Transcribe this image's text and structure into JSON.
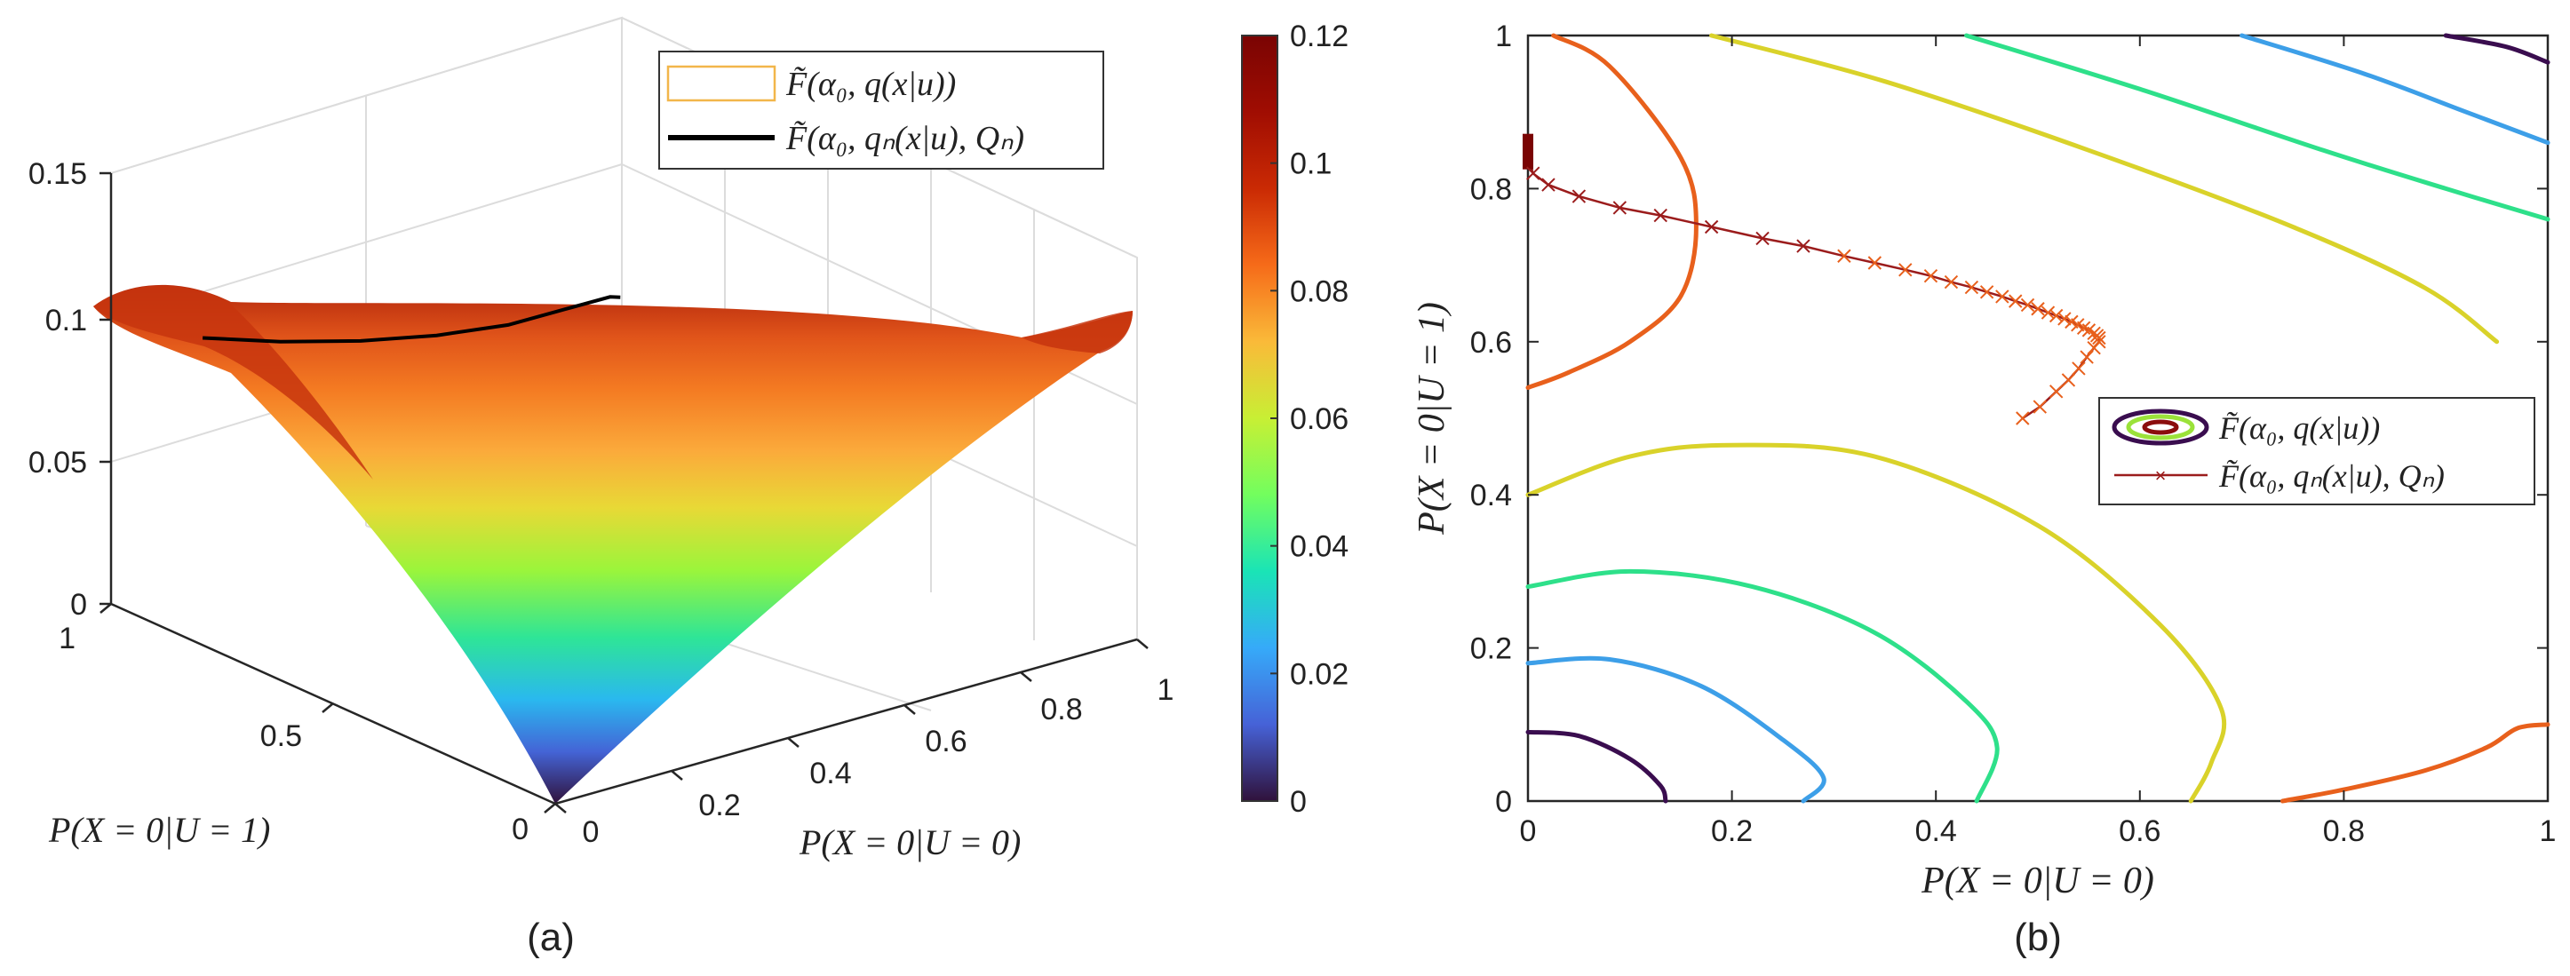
{
  "chart_data": [
    {
      "type": "surface3d",
      "panel_label": "(a)",
      "xlabel": "P(X = 0|U = 0)",
      "ylabel": "P(X = 0|U = 1)",
      "x_ticks": [
        "0",
        "0.2",
        "0.4",
        "0.6",
        "0.8",
        "1"
      ],
      "y_ticks": [
        "0",
        "0.5",
        "1"
      ],
      "z_ticks": [
        "0",
        "0.05",
        "0.1",
        "0.15"
      ],
      "xlim": [
        0,
        1
      ],
      "ylim": [
        0,
        1
      ],
      "zlim": [
        0,
        0.15
      ],
      "corner_values": {
        "x0_y0": 0.0,
        "x1_y0": 0.1,
        "x0_y1": 0.105,
        "x1_y1": 0.1
      },
      "trajectory": {
        "name": "F̃(α₀, qₙ(x|u), Qₙ)",
        "points": [
          [
            0.02,
            0.82,
            0.104
          ],
          [
            0.1,
            0.75,
            0.103
          ],
          [
            0.2,
            0.7,
            0.101
          ],
          [
            0.3,
            0.66,
            0.1
          ],
          [
            0.4,
            0.63,
            0.1
          ],
          [
            0.5,
            0.62,
            0.101
          ],
          [
            0.56,
            0.61,
            0.102
          ],
          [
            0.57,
            0.6,
            0.102
          ]
        ]
      },
      "legend": [
        {
          "label": "F̃(α₀, q(x|u))",
          "style": "surface-patch",
          "color": "#f2b64a"
        },
        {
          "label": "F̃(α₀, qₙ(x|u), Qₙ)",
          "style": "line",
          "color": "#000000"
        }
      ],
      "colorbar": {
        "min": 0,
        "max": 0.12,
        "ticks": [
          "0",
          "0.02",
          "0.04",
          "0.06",
          "0.08",
          "0.1",
          "0.12"
        ],
        "colormap": "turbo"
      }
    },
    {
      "type": "contour",
      "panel_label": "(b)",
      "xlabel": "P(X = 0|U = 0)",
      "ylabel": "P(X = 0|U = 1)",
      "x_ticks": [
        "0",
        "0.2",
        "0.4",
        "0.6",
        "0.8",
        "1"
      ],
      "y_ticks": [
        "0",
        "0.2",
        "0.4",
        "0.6",
        "0.8",
        "1"
      ],
      "xlim": [
        0,
        1
      ],
      "ylim": [
        0,
        1
      ],
      "contour_levels": [
        {
          "value": 0.012,
          "color": "#3a0d4f"
        },
        {
          "value": 0.03,
          "color": "#3d9fe8"
        },
        {
          "value": 0.05,
          "color": "#2ee08a"
        },
        {
          "value": 0.072,
          "color": "#d9d22a"
        },
        {
          "value": 0.1,
          "color": "#e8601c"
        }
      ],
      "contour_curves": [
        {
          "level": 0.012,
          "points": [
            [
              0,
              0.09
            ],
            [
              0.05,
              0.085
            ],
            [
              0.1,
              0.055
            ],
            [
              0.13,
              0.02
            ],
            [
              0.135,
              0
            ]
          ]
        },
        {
          "level": 0.012,
          "points": [
            [
              0.9,
              1
            ],
            [
              0.96,
              0.985
            ],
            [
              1,
              0.965
            ]
          ]
        },
        {
          "level": 0.03,
          "points": [
            [
              0,
              0.18
            ],
            [
              0.08,
              0.185
            ],
            [
              0.17,
              0.15
            ],
            [
              0.25,
              0.08
            ],
            [
              0.29,
              0.03
            ],
            [
              0.27,
              0
            ]
          ]
        },
        {
          "level": 0.03,
          "points": [
            [
              0.7,
              1
            ],
            [
              0.82,
              0.95
            ],
            [
              0.92,
              0.9
            ],
            [
              1,
              0.86
            ]
          ]
        },
        {
          "level": 0.05,
          "points": [
            [
              0,
              0.28
            ],
            [
              0.1,
              0.3
            ],
            [
              0.22,
              0.28
            ],
            [
              0.34,
              0.22
            ],
            [
              0.43,
              0.13
            ],
            [
              0.46,
              0.07
            ],
            [
              0.44,
              0
            ]
          ]
        },
        {
          "level": 0.05,
          "points": [
            [
              0.43,
              1
            ],
            [
              0.6,
              0.93
            ],
            [
              0.78,
              0.85
            ],
            [
              0.9,
              0.8
            ],
            [
              1,
              0.76
            ]
          ]
        },
        {
          "level": 0.072,
          "points": [
            [
              0,
              0.4
            ],
            [
              0.1,
              0.45
            ],
            [
              0.2,
              0.465
            ],
            [
              0.34,
              0.45
            ],
            [
              0.5,
              0.36
            ],
            [
              0.62,
              0.23
            ],
            [
              0.68,
              0.12
            ],
            [
              0.67,
              0.05
            ],
            [
              0.65,
              0
            ]
          ]
        },
        {
          "level": 0.072,
          "points": [
            [
              0.18,
              1
            ],
            [
              0.35,
              0.94
            ],
            [
              0.55,
              0.85
            ],
            [
              0.75,
              0.75
            ],
            [
              0.88,
              0.67
            ],
            [
              0.95,
              0.6
            ]
          ]
        },
        {
          "level": 0.1,
          "points": [
            [
              0.025,
              1
            ],
            [
              0.08,
              0.96
            ],
            [
              0.15,
              0.84
            ],
            [
              0.165,
              0.75
            ],
            [
              0.15,
              0.66
            ],
            [
              0.1,
              0.6
            ],
            [
              0.04,
              0.56
            ],
            [
              0,
              0.54
            ]
          ]
        },
        {
          "level": 0.1,
          "points": [
            [
              0.74,
              0
            ],
            [
              0.8,
              0.015
            ],
            [
              0.88,
              0.04
            ],
            [
              0.94,
              0.07
            ],
            [
              0.97,
              0.095
            ],
            [
              1,
              0.1
            ]
          ]
        }
      ],
      "trajectory": {
        "name": "F̃(α₀, qₙ(x|u), Qₙ)",
        "start_point": [
          0.0,
          0.86
        ],
        "points": [
          [
            0.0,
            0.86
          ],
          [
            0.0,
            0.84
          ],
          [
            0.005,
            0.82
          ],
          [
            0.02,
            0.805
          ],
          [
            0.05,
            0.79
          ],
          [
            0.09,
            0.775
          ],
          [
            0.13,
            0.765
          ],
          [
            0.18,
            0.75
          ],
          [
            0.23,
            0.735
          ],
          [
            0.27,
            0.725
          ],
          [
            0.31,
            0.712
          ],
          [
            0.34,
            0.703
          ],
          [
            0.37,
            0.694
          ],
          [
            0.395,
            0.686
          ],
          [
            0.415,
            0.678
          ],
          [
            0.435,
            0.671
          ],
          [
            0.45,
            0.665
          ],
          [
            0.465,
            0.659
          ],
          [
            0.478,
            0.653
          ],
          [
            0.49,
            0.648
          ],
          [
            0.5,
            0.643
          ],
          [
            0.51,
            0.638
          ],
          [
            0.518,
            0.634
          ],
          [
            0.526,
            0.63
          ],
          [
            0.533,
            0.626
          ],
          [
            0.539,
            0.622
          ],
          [
            0.545,
            0.618
          ],
          [
            0.55,
            0.615
          ],
          [
            0.555,
            0.611
          ],
          [
            0.558,
            0.608
          ],
          [
            0.56,
            0.605
          ],
          [
            0.56,
            0.6
          ],
          [
            0.555,
            0.592
          ],
          [
            0.548,
            0.58
          ],
          [
            0.54,
            0.565
          ],
          [
            0.53,
            0.55
          ],
          [
            0.518,
            0.535
          ],
          [
            0.502,
            0.515
          ],
          [
            0.485,
            0.5
          ]
        ]
      },
      "legend": [
        {
          "label": "F̃(α₀, q(x|u))",
          "style": "contour-rings"
        },
        {
          "label": "F̃(α₀, qₙ(x|u), Qₙ)",
          "style": "line-x",
          "color": "#9b1c1c"
        }
      ]
    }
  ]
}
